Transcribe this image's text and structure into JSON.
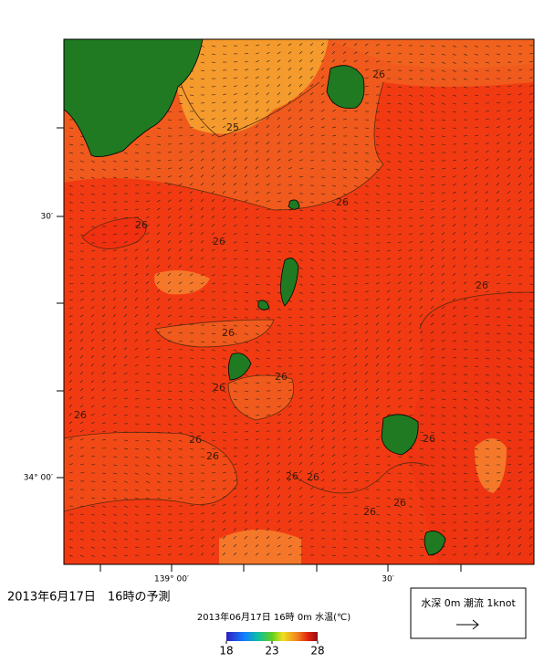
{
  "map": {
    "axis_labels": {
      "lat": [
        "30′",
        "34° 00′"
      ],
      "lon": [
        "139° 00′",
        "30′"
      ]
    },
    "contour_labels": [
      "25",
      "26",
      "26",
      "26",
      "26",
      "26",
      "26",
      "26",
      "26",
      "26",
      "26",
      "26",
      "26",
      "26",
      "26",
      "26",
      "26"
    ],
    "forecast_title": "2013年6月17日　16時の予測",
    "caption": "2013年06月17日 16時 0m 水温(℃)",
    "colorbar": {
      "ticks": [
        18,
        23,
        28
      ]
    },
    "legend": "水深 0m 潮流 1knot"
  }
}
